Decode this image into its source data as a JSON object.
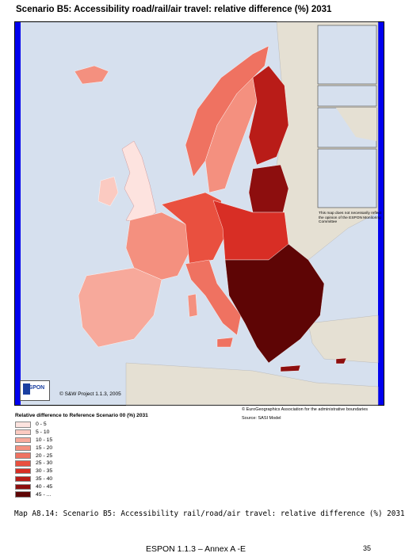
{
  "map": {
    "title": "Scenario B5: Accessibility road/rail/air travel: relative difference (%) 2031",
    "logo_text": "ESPON",
    "copyright": "© S&W Project 1.1.3, 2005",
    "disclaimer": "This map does not necessarily reflect the opinion of the ESPON Monitoring Committee",
    "credit_boundaries": "© EuroGeographics Association for the administrative boundaries",
    "credit_source": "Source: SASI Model",
    "colors": {
      "sea": "#d6e0ee",
      "non_study_land": "#e5e0d3",
      "border_frame": "#0000ee",
      "class_colors": [
        "#fde3df",
        "#fbcac1",
        "#f7a99b",
        "#f4907f",
        "#ef7261",
        "#e9503f",
        "#d82e25",
        "#b91c18",
        "#8d0e0e",
        "#5e0505"
      ]
    }
  },
  "legend": {
    "title": "Relative difference to Reference Scenario 00 (%) 2031",
    "classes": [
      {
        "label": "0  -  5"
      },
      {
        "label": "5  -  10"
      },
      {
        "label": "10  -  15"
      },
      {
        "label": "15  -  20"
      },
      {
        "label": "20  -  25"
      },
      {
        "label": "25  -  30"
      },
      {
        "label": "30  -  35"
      },
      {
        "label": "35  -  40"
      },
      {
        "label": "40  -  45"
      },
      {
        "label": "45  -  ..."
      }
    ]
  },
  "caption": "Map A8.14: Scenario B5: Accessibility rail/road/air travel: relative difference (%) 2031",
  "footer": {
    "text": "ESPON 1.1.3 – Annex A -E",
    "page_number": "35"
  }
}
